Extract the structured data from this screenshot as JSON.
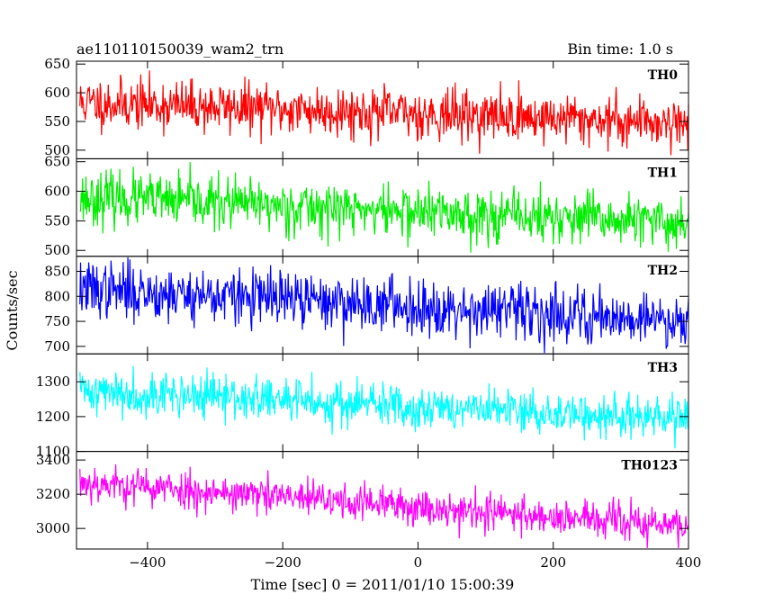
{
  "chart_data": {
    "type": "line",
    "title_left": "ae110110150039_wam2_trn",
    "title_right": "Bin time: 1.0 s",
    "xlabel": "Time [sec] 0 = 2011/01/10 15:00:39",
    "ylabel": "Counts/sec",
    "xlim": [
      -505,
      400
    ],
    "x_ticks": [
      -400,
      -200,
      0,
      200,
      400
    ],
    "x_tick_labels": [
      "−400",
      "−200",
      "0",
      "200",
      "400"
    ],
    "grid": false,
    "series": [
      {
        "name": "TH0",
        "color": "#ff0000",
        "ylim": [
          485,
          655
        ],
        "y_ticks": [
          500,
          550,
          600,
          650
        ],
        "y_tick_labels": [
          "500",
          "550",
          "600",
          "650"
        ],
        "x_range": [
          -500,
          400
        ],
        "trend_start": 583,
        "trend_end": 548,
        "noise": 22,
        "seed": 11
      },
      {
        "name": "TH1",
        "color": "#00ee00",
        "ylim": [
          490,
          655
        ],
        "y_ticks": [
          500,
          550,
          600,
          650
        ],
        "y_tick_labels": [
          "500",
          "550",
          "600",
          "650"
        ],
        "x_range": [
          -500,
          400
        ],
        "trend_start": 590,
        "trend_end": 545,
        "noise": 22,
        "seed": 23
      },
      {
        "name": "TH2",
        "color": "#0000ff",
        "ylim": [
          685,
          880
        ],
        "y_ticks": [
          700,
          750,
          800,
          850
        ],
        "y_tick_labels": [
          "700",
          "750",
          "800",
          "850"
        ],
        "x_range": [
          -500,
          400
        ],
        "trend_start": 815,
        "trend_end": 752,
        "noise": 28,
        "seed": 37
      },
      {
        "name": "TH3",
        "color": "#00ffff",
        "ylim": [
          1100,
          1380
        ],
        "y_ticks": [
          1100,
          1200,
          1300
        ],
        "y_tick_labels": [
          "1100",
          "1200",
          "1300"
        ],
        "x_range": [
          -500,
          400
        ],
        "trend_start": 1275,
        "trend_end": 1190,
        "noise": 32,
        "seed": 41
      },
      {
        "name": "TH0123",
        "color": "#ff00ff",
        "ylim": [
          2880,
          3450
        ],
        "y_ticks": [
          3000,
          3200,
          3400
        ],
        "y_tick_labels": [
          "3000",
          "3200",
          "3400"
        ],
        "x_range": [
          -500,
          400
        ],
        "trend_start": 3270,
        "trend_end": 3010,
        "noise": 55,
        "seed": 53
      }
    ]
  }
}
